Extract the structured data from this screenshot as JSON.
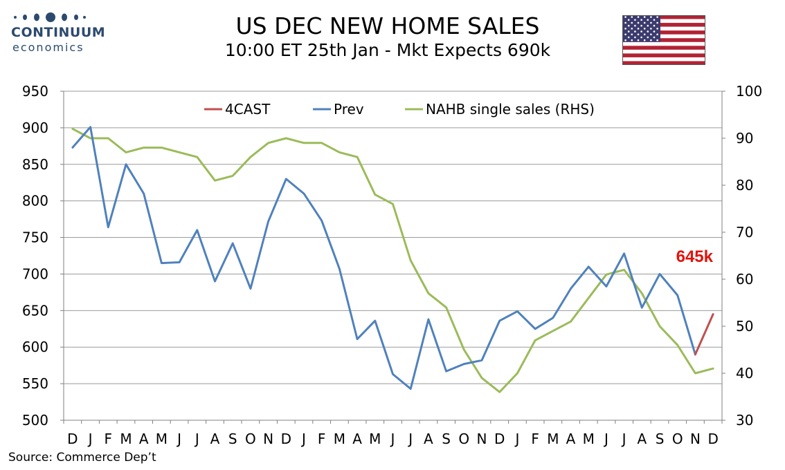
{
  "logo": {
    "name": "CONTINUUM",
    "sub": "economics"
  },
  "header": {
    "title": "US DEC NEW HOME SALES",
    "subtitle": "10:00 ET 25th Jan - Mkt Expects 690k"
  },
  "footer": {
    "source": "Source: Commerce Dep’t"
  },
  "colors": {
    "forecast": "#c0504d",
    "prev": "#4f81bd",
    "nahb": "#9bbb59",
    "callout": "#e3120b",
    "grid": "#9a9a9a",
    "logo": "#2c4a6e"
  },
  "chart_data": {
    "type": "line",
    "categories": [
      "D",
      "J",
      "F",
      "M",
      "A",
      "M",
      "J",
      "J",
      "A",
      "S",
      "O",
      "N",
      "D",
      "J",
      "F",
      "M",
      "A",
      "M",
      "J",
      "J",
      "A",
      "S",
      "O",
      "N",
      "D",
      "J",
      "F",
      "M",
      "A",
      "M",
      "J",
      "J",
      "A",
      "S",
      "O",
      "N",
      "D"
    ],
    "y_left": {
      "ticks": [
        500,
        550,
        600,
        650,
        700,
        750,
        800,
        850,
        900,
        950
      ],
      "range": [
        500,
        950
      ]
    },
    "y_right": {
      "ticks": [
        30,
        40,
        50,
        60,
        70,
        80,
        90,
        100
      ],
      "range": [
        30,
        100
      ]
    },
    "grid": true,
    "legend_position": "top-center",
    "series": [
      {
        "name": "4CAST",
        "axis": "left",
        "color": "#c0504d",
        "values": [
          null,
          null,
          null,
          null,
          null,
          null,
          null,
          null,
          null,
          null,
          null,
          null,
          null,
          null,
          null,
          null,
          null,
          null,
          null,
          null,
          null,
          null,
          null,
          null,
          null,
          null,
          null,
          null,
          null,
          null,
          null,
          null,
          null,
          null,
          null,
          590,
          645
        ]
      },
      {
        "name": "Prev",
        "axis": "left",
        "color": "#4f81bd",
        "values": [
          873,
          901,
          764,
          850,
          810,
          715,
          716,
          760,
          690,
          742,
          680,
          772,
          830,
          810,
          773,
          707,
          611,
          636,
          563,
          543,
          638,
          567,
          577,
          582,
          636,
          649,
          625,
          640,
          680,
          710,
          683,
          728,
          654,
          700,
          671,
          590,
          null
        ]
      },
      {
        "name": "NAHB single sales (RHS)",
        "axis": "right",
        "color": "#9bbb59",
        "values": [
          92,
          90,
          90,
          87,
          88,
          88,
          87,
          86,
          81,
          82,
          86,
          89,
          90,
          89,
          89,
          87,
          86,
          78,
          76,
          64,
          57,
          54,
          45,
          39,
          36,
          40,
          47,
          49,
          51,
          56,
          61,
          62,
          57,
          50,
          46,
          40,
          41
        ]
      }
    ],
    "annotation": {
      "text": "645k",
      "color": "#e3120b"
    }
  }
}
